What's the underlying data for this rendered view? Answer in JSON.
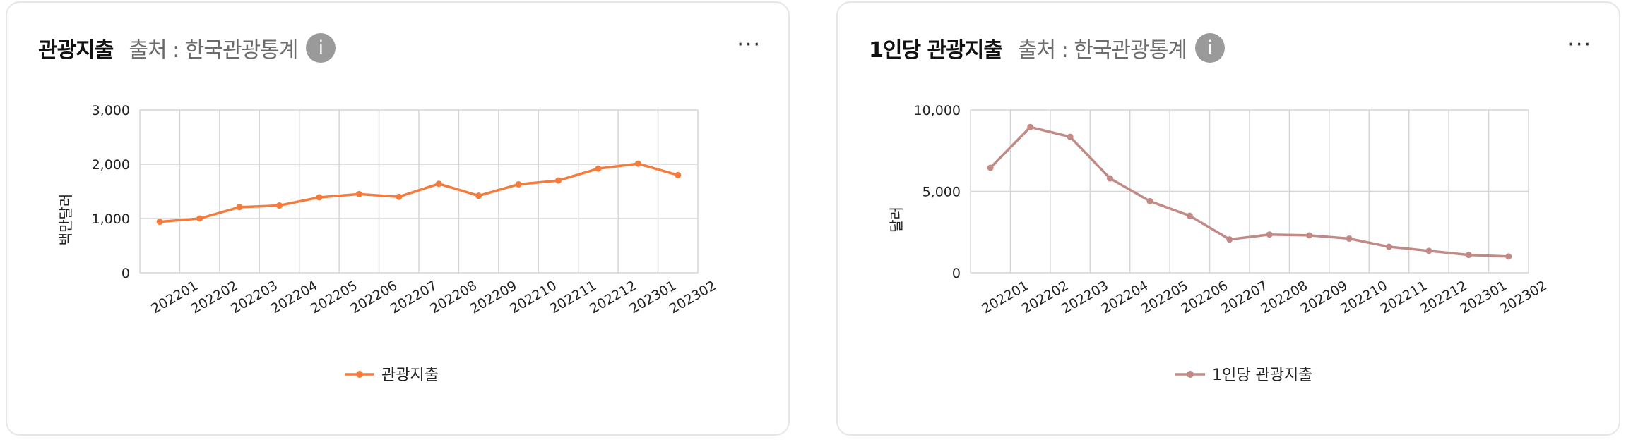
{
  "cards": [
    {
      "title": "관광지출",
      "source": "출처 : 한국관광통계",
      "info_icon": "i",
      "more_label": "···"
    },
    {
      "title": "1인당 관광지출",
      "source": "출처 : 한국관광통계",
      "info_icon": "i",
      "more_label": "···"
    }
  ],
  "chart_data": [
    {
      "type": "line",
      "categories": [
        "202201",
        "202202",
        "202203",
        "202204",
        "202205",
        "202206",
        "202207",
        "202208",
        "202209",
        "202210",
        "202211",
        "202212",
        "202301",
        "202302"
      ],
      "series": [
        {
          "name": "관광지출",
          "values": [
            940,
            1000,
            1210,
            1240,
            1390,
            1450,
            1400,
            1640,
            1420,
            1630,
            1700,
            1920,
            2010,
            1800
          ]
        }
      ],
      "ylabel": "백만달러",
      "ylim": [
        0,
        3000
      ],
      "yticks": [
        "0",
        "1,000",
        "2,000",
        "3,000"
      ],
      "color": "#f47b3b",
      "grid": true,
      "legend": "bottom"
    },
    {
      "type": "line",
      "categories": [
        "202201",
        "202202",
        "202203",
        "202204",
        "202205",
        "202206",
        "202207",
        "202208",
        "202209",
        "202210",
        "202211",
        "202212",
        "202301",
        "202302"
      ],
      "series": [
        {
          "name": "1인당 관광지출",
          "values": [
            6450,
            8950,
            8350,
            5800,
            4400,
            3500,
            2050,
            2350,
            2300,
            2100,
            1600,
            1350,
            1100,
            1000
          ]
        }
      ],
      "ylabel": "달러",
      "ylim": [
        0,
        10000
      ],
      "yticks": [
        "0",
        "5,000",
        "10,000"
      ],
      "color": "#c28a86",
      "grid": true,
      "legend": "bottom"
    }
  ]
}
